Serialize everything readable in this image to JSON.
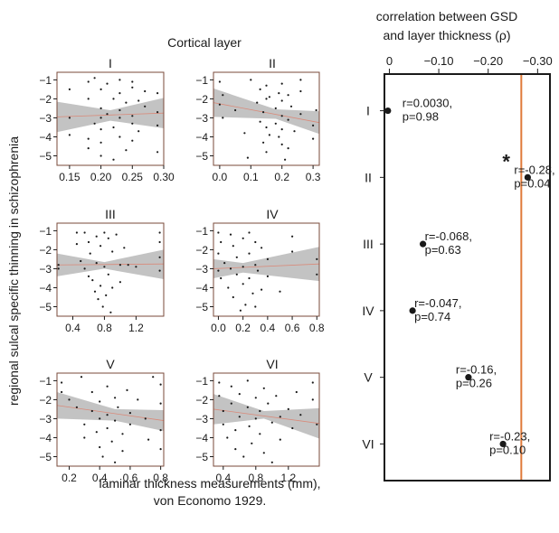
{
  "figure": {
    "left_title": "Cortical layer",
    "ylabel": "regional sulcal specific thinning in schizophrenia",
    "xlabel_line1": "laminar thickness measurements (mm),",
    "xlabel_line2": "von Economo 1929.",
    "right_title_line1": "correlation between GSD",
    "right_title_line2": "and layer thickness (ρ)"
  },
  "colors": {
    "panel_border": "#7a4a3a",
    "ci_band": "#b8b8b8",
    "fit_line": "#d98a7a",
    "points": "#1a1a1a",
    "threshold_line": "#e07a3a"
  },
  "chart_data": [
    {
      "type": "scatter",
      "title": "I",
      "xlim": [
        0.13,
        0.3
      ],
      "ylim": [
        -5.5,
        -0.6
      ],
      "xticks": [
        0.15,
        0.2,
        0.25,
        0.3
      ],
      "xtick_labels": [
        "0.15",
        "0.20",
        "0.25",
        "0.30"
      ],
      "yticks": [
        -1,
        -2,
        -3,
        -4,
        -5
      ],
      "ytick_labels": [
        "−1",
        "−2",
        "−3",
        "−4",
        "−5"
      ],
      "fit": {
        "x": [
          0.13,
          0.3
        ],
        "y": [
          -2.95,
          -2.75
        ]
      },
      "ci": {
        "x": [
          0.13,
          0.215,
          0.3
        ],
        "upper": [
          -2.15,
          -2.6,
          -1.95
        ],
        "lower": [
          -3.75,
          -3.15,
          -3.55
        ]
      },
      "points": [
        [
          0.15,
          -1.5
        ],
        [
          0.15,
          -3.0
        ],
        [
          0.15,
          -3.9
        ],
        [
          0.18,
          -1.1
        ],
        [
          0.18,
          -2.0
        ],
        [
          0.18,
          -4.1
        ],
        [
          0.18,
          -4.6
        ],
        [
          0.19,
          -0.9
        ],
        [
          0.19,
          -3.3
        ],
        [
          0.2,
          -1.5
        ],
        [
          0.2,
          -2.5
        ],
        [
          0.2,
          -3.0
        ],
        [
          0.2,
          -3.6
        ],
        [
          0.2,
          -4.3
        ],
        [
          0.2,
          -5.0
        ],
        [
          0.21,
          -1.2
        ],
        [
          0.21,
          -2.8
        ],
        [
          0.22,
          -2.0
        ],
        [
          0.22,
          -3.5
        ],
        [
          0.22,
          -5.2
        ],
        [
          0.23,
          -1.0
        ],
        [
          0.23,
          -1.7
        ],
        [
          0.23,
          -2.6
        ],
        [
          0.23,
          -3.0
        ],
        [
          0.23,
          -4.0
        ],
        [
          0.24,
          -2.2
        ],
        [
          0.24,
          -4.7
        ],
        [
          0.25,
          -1.1
        ],
        [
          0.25,
          -1.4
        ],
        [
          0.25,
          -2.9
        ],
        [
          0.25,
          -3.3
        ],
        [
          0.25,
          -4.2
        ],
        [
          0.26,
          -2.1
        ],
        [
          0.26,
          -3.7
        ],
        [
          0.27,
          -1.6
        ],
        [
          0.27,
          -2.4
        ],
        [
          0.29,
          -1.7
        ],
        [
          0.29,
          -2.7
        ],
        [
          0.29,
          -3.4
        ],
        [
          0.29,
          -4.8
        ]
      ]
    },
    {
      "type": "scatter",
      "title": "II",
      "xlim": [
        -0.02,
        0.32
      ],
      "ylim": [
        -5.5,
        -0.6
      ],
      "xticks": [
        0.0,
        0.1,
        0.2,
        0.3
      ],
      "xtick_labels": [
        "0.0",
        "0.1",
        "0.2",
        "0.3"
      ],
      "yticks": [
        -1,
        -2,
        -3,
        -4,
        -5
      ],
      "ytick_labels": [
        "−1",
        "−2",
        "−3",
        "−4",
        "−5"
      ],
      "fit": {
        "x": [
          -0.02,
          0.32
        ],
        "y": [
          -2.2,
          -3.25
        ]
      },
      "ci": {
        "x": [
          -0.02,
          0.18,
          0.32
        ],
        "upper": [
          -1.45,
          -2.55,
          -2.65
        ],
        "lower": [
          -2.95,
          -3.05,
          -3.85
        ]
      },
      "points": [
        [
          0.0,
          -1.1
        ],
        [
          0.0,
          -2.3
        ],
        [
          0.01,
          -1.8
        ],
        [
          0.01,
          -3.0
        ],
        [
          0.05,
          -2.6
        ],
        [
          0.08,
          -3.8
        ],
        [
          0.09,
          -5.1
        ],
        [
          0.1,
          -1.0
        ],
        [
          0.12,
          -2.2
        ],
        [
          0.13,
          -1.5
        ],
        [
          0.13,
          -3.2
        ],
        [
          0.14,
          -2.7
        ],
        [
          0.14,
          -4.3
        ],
        [
          0.15,
          -1.3
        ],
        [
          0.15,
          -2.0
        ],
        [
          0.15,
          -3.5
        ],
        [
          0.15,
          -4.8
        ],
        [
          0.16,
          -1.9
        ],
        [
          0.16,
          -3.9
        ],
        [
          0.18,
          -2.5
        ],
        [
          0.18,
          -3.3
        ],
        [
          0.19,
          -1.7
        ],
        [
          0.19,
          -4.0
        ],
        [
          0.2,
          -1.2
        ],
        [
          0.2,
          -2.1
        ],
        [
          0.2,
          -2.9
        ],
        [
          0.2,
          -3.6
        ],
        [
          0.2,
          -4.4
        ],
        [
          0.21,
          -5.2
        ],
        [
          0.22,
          -1.8
        ],
        [
          0.22,
          -3.1
        ],
        [
          0.22,
          -4.6
        ],
        [
          0.23,
          -2.4
        ],
        [
          0.24,
          -3.7
        ],
        [
          0.26,
          -1.0
        ],
        [
          0.26,
          -1.6
        ],
        [
          0.26,
          -2.8
        ],
        [
          0.3,
          -3.4
        ],
        [
          0.3,
          -4.1
        ],
        [
          0.31,
          -2.6
        ]
      ]
    },
    {
      "type": "scatter",
      "title": "III",
      "xlim": [
        0.2,
        1.55
      ],
      "ylim": [
        -5.5,
        -0.6
      ],
      "xticks": [
        0.4,
        0.8,
        1.2
      ],
      "xtick_labels": [
        "0.4",
        "0.8",
        "1.2"
      ],
      "yticks": [
        -1,
        -2,
        -3,
        -4,
        -5
      ],
      "ytick_labels": [
        "−1",
        "−2",
        "−3",
        "−4",
        "−5"
      ],
      "fit": {
        "x": [
          0.2,
          1.55
        ],
        "y": [
          -2.8,
          -2.75
        ]
      },
      "ci": {
        "x": [
          0.2,
          0.8,
          1.55
        ],
        "upper": [
          -2.2,
          -2.65,
          -2.0
        ],
        "lower": [
          -3.4,
          -3.0,
          -3.55
        ]
      },
      "points": [
        [
          0.22,
          -2.8
        ],
        [
          0.22,
          -3.0
        ],
        [
          0.45,
          -1.1
        ],
        [
          0.45,
          -1.7
        ],
        [
          0.5,
          -2.6
        ],
        [
          0.55,
          -1.1
        ],
        [
          0.55,
          -3.0
        ],
        [
          0.6,
          -1.6
        ],
        [
          0.6,
          -3.4
        ],
        [
          0.62,
          -2.2
        ],
        [
          0.65,
          -3.6
        ],
        [
          0.68,
          -4.2
        ],
        [
          0.7,
          -1.3
        ],
        [
          0.7,
          -2.7
        ],
        [
          0.72,
          -4.6
        ],
        [
          0.75,
          -1.8
        ],
        [
          0.75,
          -3.9
        ],
        [
          0.78,
          -5.0
        ],
        [
          0.8,
          -1.1
        ],
        [
          0.8,
          -2.9
        ],
        [
          0.82,
          -4.4
        ],
        [
          0.85,
          -1.4
        ],
        [
          0.85,
          -3.3
        ],
        [
          0.88,
          -5.3
        ],
        [
          0.9,
          -2.1
        ],
        [
          0.9,
          -4.0
        ],
        [
          0.95,
          -1.2
        ],
        [
          1.0,
          -2.8
        ],
        [
          1.0,
          -3.7
        ],
        [
          1.05,
          -1.9
        ],
        [
          1.1,
          -2.8
        ],
        [
          1.2,
          -2.9
        ],
        [
          1.5,
          -1.1
        ],
        [
          1.5,
          -1.6
        ],
        [
          1.5,
          -2.4
        ],
        [
          1.5,
          -3.1
        ]
      ]
    },
    {
      "type": "scatter",
      "title": "IV",
      "xlim": [
        -0.04,
        0.82
      ],
      "ylim": [
        -5.5,
        -0.6
      ],
      "xticks": [
        0.0,
        0.2,
        0.4,
        0.6,
        0.8
      ],
      "xtick_labels": [
        "0.0",
        "0.2",
        "0.4",
        "0.6",
        "0.8"
      ],
      "yticks": [
        -1,
        -2,
        -3,
        -4,
        -5
      ],
      "ytick_labels": [
        "−1",
        "−2",
        "−3",
        "−4",
        "−5"
      ],
      "fit": {
        "x": [
          -0.04,
          0.82
        ],
        "y": [
          -3.0,
          -2.75
        ]
      },
      "ci": {
        "x": [
          -0.04,
          0.2,
          0.82
        ],
        "upper": [
          -2.5,
          -2.7,
          -1.85
        ],
        "lower": [
          -3.5,
          -3.2,
          -3.65
        ]
      },
      "points": [
        [
          0.0,
          -1.1
        ],
        [
          0.0,
          -2.2
        ],
        [
          0.0,
          -3.1
        ],
        [
          0.02,
          -1.6
        ],
        [
          0.02,
          -3.5
        ],
        [
          0.05,
          -2.7
        ],
        [
          0.08,
          -4.0
        ],
        [
          0.1,
          -1.2
        ],
        [
          0.1,
          -3.0
        ],
        [
          0.12,
          -1.8
        ],
        [
          0.12,
          -4.5
        ],
        [
          0.15,
          -2.4
        ],
        [
          0.15,
          -3.3
        ],
        [
          0.18,
          -5.2
        ],
        [
          0.2,
          -1.4
        ],
        [
          0.2,
          -2.9
        ],
        [
          0.2,
          -3.8
        ],
        [
          0.22,
          -4.9
        ],
        [
          0.25,
          -1.1
        ],
        [
          0.25,
          -2.2
        ],
        [
          0.25,
          -3.5
        ],
        [
          0.28,
          -4.3
        ],
        [
          0.3,
          -1.6
        ],
        [
          0.3,
          -2.8
        ],
        [
          0.3,
          -5.0
        ],
        [
          0.32,
          -3.1
        ],
        [
          0.35,
          -1.9
        ],
        [
          0.35,
          -4.1
        ],
        [
          0.4,
          -2.5
        ],
        [
          0.4,
          -3.4
        ],
        [
          0.5,
          -4.2
        ],
        [
          0.6,
          -1.3
        ],
        [
          0.6,
          -2.1
        ],
        [
          0.8,
          -2.5
        ],
        [
          0.8,
          -3.3
        ]
      ]
    },
    {
      "type": "scatter",
      "title": "V",
      "xlim": [
        0.12,
        0.82
      ],
      "ylim": [
        -5.5,
        -0.6
      ],
      "xticks": [
        0.2,
        0.4,
        0.6,
        0.8
      ],
      "xtick_labels": [
        "0.2",
        "0.4",
        "0.6",
        "0.8"
      ],
      "yticks": [
        -1,
        -2,
        -3,
        -4,
        -5
      ],
      "ytick_labels": [
        "−1",
        "−2",
        "−3",
        "−4",
        "−5"
      ],
      "fit": {
        "x": [
          0.12,
          0.82
        ],
        "y": [
          -2.3,
          -3.1
        ]
      },
      "ci": {
        "x": [
          0.12,
          0.5,
          0.82
        ],
        "upper": [
          -1.6,
          -2.5,
          -2.55
        ],
        "lower": [
          -3.0,
          -3.1,
          -3.65
        ]
      },
      "points": [
        [
          0.15,
          -1.1
        ],
        [
          0.15,
          -1.6
        ],
        [
          0.2,
          -2.0
        ],
        [
          0.25,
          -2.4
        ],
        [
          0.28,
          -0.8
        ],
        [
          0.3,
          -3.3
        ],
        [
          0.3,
          -4.0
        ],
        [
          0.35,
          -1.6
        ],
        [
          0.35,
          -2.6
        ],
        [
          0.38,
          -3.7
        ],
        [
          0.4,
          -2.1
        ],
        [
          0.4,
          -3.0
        ],
        [
          0.4,
          -4.5
        ],
        [
          0.42,
          -5.0
        ],
        [
          0.45,
          -1.3
        ],
        [
          0.45,
          -2.8
        ],
        [
          0.45,
          -3.5
        ],
        [
          0.48,
          -4.2
        ],
        [
          0.5,
          -1.9
        ],
        [
          0.5,
          -3.1
        ],
        [
          0.5,
          -5.3
        ],
        [
          0.52,
          -2.4
        ],
        [
          0.55,
          -3.8
        ],
        [
          0.55,
          -4.7
        ],
        [
          0.58,
          -1.5
        ],
        [
          0.6,
          -2.7
        ],
        [
          0.6,
          -3.3
        ],
        [
          0.65,
          -2.0
        ],
        [
          0.7,
          -3.0
        ],
        [
          0.72,
          -4.1
        ],
        [
          0.75,
          -0.8
        ],
        [
          0.8,
          -1.2
        ],
        [
          0.8,
          -2.2
        ],
        [
          0.8,
          -3.6
        ],
        [
          0.8,
          -4.6
        ]
      ]
    },
    {
      "type": "scatter",
      "title": "VI",
      "xlim": [
        0.28,
        1.58
      ],
      "ylim": [
        -5.5,
        -0.6
      ],
      "xticks": [
        0.4,
        0.8,
        1.2
      ],
      "xtick_labels": [
        "0.4",
        "0.8",
        "1.2"
      ],
      "yticks": [
        -1,
        -2,
        -3,
        -4,
        -5
      ],
      "ytick_labels": [
        "−1",
        "−2",
        "−3",
        "−4",
        "−5"
      ],
      "fit": {
        "x": [
          0.28,
          1.58
        ],
        "y": [
          -2.5,
          -3.25
        ]
      },
      "ci": {
        "x": [
          0.28,
          0.9,
          1.58
        ],
        "upper": [
          -1.7,
          -2.6,
          -2.45
        ],
        "lower": [
          -3.3,
          -3.0,
          -4.05
        ]
      },
      "points": [
        [
          0.35,
          -1.1
        ],
        [
          0.35,
          -1.8
        ],
        [
          0.4,
          -2.6
        ],
        [
          0.4,
          -3.3
        ],
        [
          0.45,
          -4.0
        ],
        [
          0.5,
          -1.3
        ],
        [
          0.5,
          -2.2
        ],
        [
          0.55,
          -3.6
        ],
        [
          0.55,
          -4.6
        ],
        [
          0.6,
          -1.7
        ],
        [
          0.6,
          -2.9
        ],
        [
          0.65,
          -5.0
        ],
        [
          0.7,
          -1.0
        ],
        [
          0.7,
          -2.4
        ],
        [
          0.72,
          -3.4
        ],
        [
          0.75,
          -4.3
        ],
        [
          0.8,
          -1.9
        ],
        [
          0.8,
          -3.0
        ],
        [
          0.85,
          -2.6
        ],
        [
          0.85,
          -3.8
        ],
        [
          0.9,
          -1.4
        ],
        [
          0.9,
          -4.8
        ],
        [
          0.95,
          -2.2
        ],
        [
          1.0,
          -3.2
        ],
        [
          1.0,
          -5.3
        ],
        [
          1.05,
          -1.8
        ],
        [
          1.1,
          -2.9
        ],
        [
          1.1,
          -4.1
        ],
        [
          1.2,
          -2.5
        ],
        [
          1.25,
          -3.5
        ],
        [
          1.3,
          -1.6
        ],
        [
          1.35,
          -2.8
        ],
        [
          1.5,
          -1.1
        ],
        [
          1.5,
          -2.0
        ],
        [
          1.55,
          -3.3
        ]
      ]
    },
    {
      "type": "scatter",
      "title": "",
      "xlim": [
        0.01,
        -0.325
      ],
      "ylim": [
        6.55,
        0.45
      ],
      "xticks": [
        0,
        -0.1,
        -0.2,
        -0.3
      ],
      "xtick_labels": [
        "0",
        "−0.10",
        "−0.20",
        "−0.30"
      ],
      "categories": [
        "I",
        "II",
        "III",
        "IV",
        "V",
        "VI"
      ],
      "values": [
        0.003,
        -0.28,
        -0.068,
        -0.047,
        -0.16,
        -0.23
      ],
      "annotations": [
        {
          "line1": "r=0.0030,",
          "line2": "p=0.98"
        },
        {
          "line1": "r=-0.28,",
          "line2": "p=0.04"
        },
        {
          "line1": "r=-0.068,",
          "line2": "p=0.63"
        },
        {
          "line1": "r=-0.047,",
          "line2": "p=0.74"
        },
        {
          "line1": "r=-0.16,",
          "line2": "p=0.26"
        },
        {
          "line1": "r=-0.23,",
          "line2": "p=0.10"
        }
      ],
      "significance_marker": {
        "layer": "II",
        "symbol": "*"
      },
      "threshold_line_x": -0.267
    }
  ]
}
